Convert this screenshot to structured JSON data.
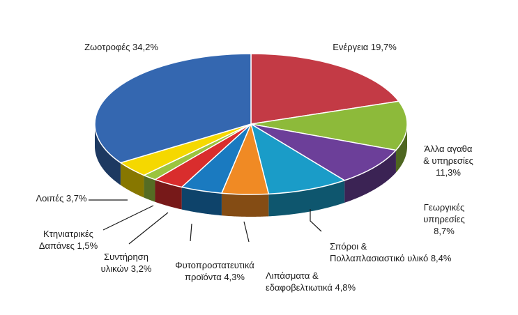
{
  "chart_data": {
    "type": "pie",
    "style": "3d-exploded",
    "legend": "none",
    "title": "",
    "slices": [
      {
        "label": "Ενέργεια",
        "value": 19.7,
        "value_label": "19,7%",
        "color": "#c33a45",
        "label_lines": [
          "Ενέργεια 19,7%"
        ]
      },
      {
        "label": "Άλλα αγαθα & υπηρεσίες",
        "value": 11.3,
        "value_label": "11,3%",
        "color": "#8dba3a",
        "label_lines": [
          "Άλλα αγαθα",
          "& υπηρεσίες",
          "11,3%"
        ]
      },
      {
        "label": "Γεωργικές υπηρεσίες",
        "value": 8.7,
        "value_label": "8,7%",
        "color": "#6c3f99",
        "label_lines": [
          "Γεωργικές",
          "υπηρεσίες",
          "8,7%"
        ]
      },
      {
        "label": "Σπόροι & Πολλαπλασιαστικό υλικό",
        "value": 8.4,
        "value_label": "8,4%",
        "color": "#1a9cc8",
        "label_lines": [
          "Σπόροι &",
          "Πολλαπλασιαστικό υλικό 8,4%"
        ]
      },
      {
        "label": "Λιπάσματα & εδαφοβελτιωτικά",
        "value": 4.8,
        "value_label": "4,8%",
        "color": "#f08a24",
        "label_lines": [
          "Λιπάσματα &",
          "εδαφοβελτιωτικά 4,8%"
        ]
      },
      {
        "label": "Φυτοπροστατευτικά προϊόντα",
        "value": 4.3,
        "value_label": "4,3%",
        "color": "#1a7ac0",
        "label_lines": [
          "Φυτοπροστατευτικά",
          "προϊόντα 4,3%"
        ]
      },
      {
        "label": "Συντήρηση υλικών",
        "value": 3.2,
        "value_label": "3,2%",
        "color": "#d92d2d",
        "label_lines": [
          "Συντήρηση",
          "υλικών 3,2%"
        ]
      },
      {
        "label": "Κτηνιατρικές Δαπάνες",
        "value": 1.5,
        "value_label": "1,5%",
        "color": "#9bc43f",
        "label_lines": [
          "Κτηνιατρικές",
          "Δαπάνες 1,5%"
        ]
      },
      {
        "label": "Λοιπές",
        "value": 3.7,
        "value_label": "3,7%",
        "color": "#f5d800",
        "label_lines": [
          "Λοιπές 3,7%"
        ]
      },
      {
        "label": "Ζωοτροφές",
        "value": 34.2,
        "value_label": "34,2%",
        "color": "#3467b0",
        "label_lines": [
          "Ζωοτροφές 34,2%"
        ]
      }
    ]
  }
}
